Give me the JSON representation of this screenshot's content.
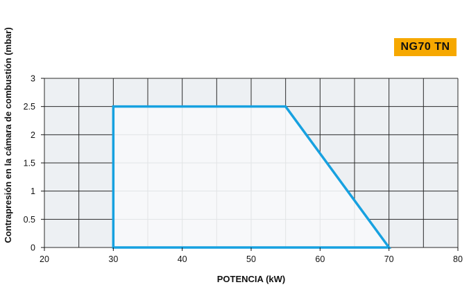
{
  "badge": {
    "label": "NG70 TN",
    "color": "#f6a800"
  },
  "chart_data": {
    "type": "area",
    "title": "",
    "xlabel": "POTENCIA (kW)",
    "ylabel": "Contrapresión en la cámara de combustión (mbar)",
    "xlim": [
      20,
      80
    ],
    "ylim": [
      0,
      3
    ],
    "x_ticks": [
      20,
      30,
      40,
      50,
      60,
      70,
      80
    ],
    "y_ticks": [
      "0",
      "0.5",
      "1",
      "1.5",
      "2",
      "2.5",
      "3"
    ],
    "grid": true,
    "x_minor_step": 5,
    "series": [
      {
        "x": [
          30,
          30,
          55,
          70,
          30
        ],
        "y": [
          0,
          2.5,
          2.5,
          0,
          0
        ]
      }
    ],
    "colors": {
      "outline": "#17a1e0",
      "inside": "#f7f8fa",
      "outside": "#edf0f3",
      "grid_outside": "#2a2a2a",
      "grid_inside": "#e2e4e6"
    }
  }
}
